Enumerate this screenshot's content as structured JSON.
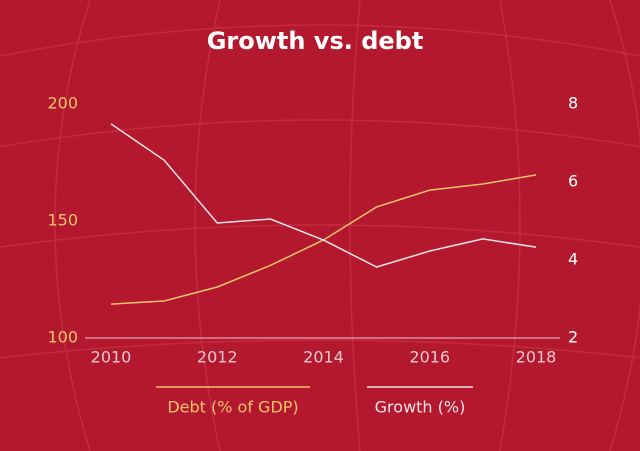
{
  "chart_data": {
    "type": "line",
    "title": "Growth vs. debt",
    "x": [
      2010,
      2011,
      2012,
      2013,
      2014,
      2015,
      2016,
      2017,
      2018
    ],
    "xlim": [
      2010,
      2018
    ],
    "xticks": [
      2010,
      2012,
      2014,
      2016,
      2018
    ],
    "ylim": [
      100,
      200
    ],
    "yticks": [
      100,
      150,
      200
    ],
    "y2lim": [
      2,
      8
    ],
    "y2ticks": [
      2,
      4,
      6,
      8
    ],
    "legend": "bottom",
    "series": [
      {
        "name": "Debt (% of GDP)",
        "color": "#f2c46a",
        "values": [
          114.5,
          115.8,
          121.8,
          131,
          141.9,
          156,
          163.2,
          165.8,
          169.7
        ]
      },
      {
        "name": "Growth (%)",
        "color": "#f4e4e6",
        "axis": "y2",
        "values": [
          7.49,
          6.56,
          4.95,
          5.05,
          4.51,
          3.82,
          4.23,
          4.54,
          4.33
        ]
      }
    ]
  }
}
